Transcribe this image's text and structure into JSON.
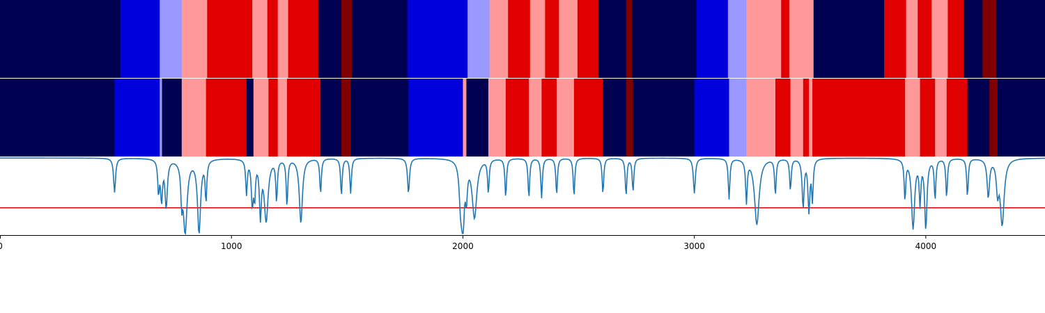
{
  "chart_data": {
    "type": "heatmap",
    "title": "",
    "xlabel": "",
    "xlim": [
      0,
      4515
    ],
    "x_ticks": [
      0,
      1000,
      2000,
      3000,
      4000
    ],
    "x_tick_labels": [
      "0",
      "1000",
      "2000",
      "3000",
      "4000"
    ],
    "grid": false,
    "legend": "none",
    "color_map": {
      "0": "#000050",
      "1": "#0000DC",
      "2": "#9999FF",
      "3": "#FF9999",
      "4": "#E10000",
      "5": "#800000"
    },
    "rows": [
      {
        "segments": [
          [
            0,
            520,
            0
          ],
          [
            520,
            690,
            1
          ],
          [
            690,
            785,
            2
          ],
          [
            785,
            895,
            3
          ],
          [
            895,
            1090,
            4
          ],
          [
            1090,
            1155,
            3
          ],
          [
            1155,
            1200,
            4
          ],
          [
            1200,
            1245,
            3
          ],
          [
            1245,
            1375,
            4
          ],
          [
            1375,
            1475,
            0
          ],
          [
            1475,
            1520,
            5
          ],
          [
            1520,
            1760,
            0
          ],
          [
            1760,
            2020,
            1
          ],
          [
            2020,
            2115,
            2
          ],
          [
            2115,
            2195,
            3
          ],
          [
            2195,
            2290,
            4
          ],
          [
            2290,
            2355,
            3
          ],
          [
            2355,
            2415,
            4
          ],
          [
            2415,
            2495,
            3
          ],
          [
            2495,
            2585,
            4
          ],
          [
            2585,
            2705,
            0
          ],
          [
            2705,
            2730,
            5
          ],
          [
            2730,
            3010,
            0
          ],
          [
            3010,
            3145,
            1
          ],
          [
            3145,
            3225,
            2
          ],
          [
            3225,
            3375,
            3
          ],
          [
            3375,
            3410,
            4
          ],
          [
            3410,
            3515,
            3
          ],
          [
            3515,
            3820,
            0
          ],
          [
            3820,
            3915,
            4
          ],
          [
            3915,
            3965,
            3
          ],
          [
            3965,
            4025,
            4
          ],
          [
            4025,
            4095,
            3
          ],
          [
            4095,
            4165,
            4
          ],
          [
            4165,
            4245,
            0
          ],
          [
            4245,
            4305,
            5
          ],
          [
            4305,
            4515,
            0
          ]
        ]
      },
      {
        "segments": [
          [
            0,
            495,
            0
          ],
          [
            495,
            690,
            1
          ],
          [
            690,
            700,
            2
          ],
          [
            700,
            785,
            0
          ],
          [
            785,
            890,
            3
          ],
          [
            890,
            1065,
            4
          ],
          [
            1065,
            1095,
            0
          ],
          [
            1095,
            1160,
            3
          ],
          [
            1160,
            1200,
            4
          ],
          [
            1200,
            1240,
            3
          ],
          [
            1240,
            1385,
            4
          ],
          [
            1385,
            1475,
            0
          ],
          [
            1475,
            1515,
            5
          ],
          [
            1515,
            1765,
            0
          ],
          [
            1765,
            2000,
            1
          ],
          [
            2000,
            2015,
            3
          ],
          [
            2015,
            2110,
            0
          ],
          [
            2110,
            2185,
            3
          ],
          [
            2185,
            2285,
            4
          ],
          [
            2285,
            2340,
            3
          ],
          [
            2340,
            2405,
            4
          ],
          [
            2405,
            2480,
            3
          ],
          [
            2480,
            2605,
            4
          ],
          [
            2605,
            2705,
            0
          ],
          [
            2705,
            2735,
            5
          ],
          [
            2735,
            3000,
            0
          ],
          [
            3000,
            3150,
            1
          ],
          [
            3150,
            3225,
            2
          ],
          [
            3225,
            3350,
            3
          ],
          [
            3350,
            3415,
            4
          ],
          [
            3415,
            3470,
            3
          ],
          [
            3470,
            3495,
            4
          ],
          [
            3495,
            3510,
            3
          ],
          [
            3510,
            3910,
            4
          ],
          [
            3910,
            3975,
            3
          ],
          [
            3975,
            4040,
            4
          ],
          [
            4040,
            4090,
            3
          ],
          [
            4090,
            4180,
            4
          ],
          [
            4180,
            4275,
            0
          ],
          [
            4275,
            4310,
            5
          ],
          [
            4310,
            4515,
            0
          ]
        ]
      }
    ],
    "line": {
      "color": "#1F77B4",
      "ylim": [
        0,
        1
      ],
      "baseline": 0.99,
      "threshold": {
        "value": 0.35,
        "color": "#E00000"
      },
      "dips": [
        [
          495,
          0.55,
          5
        ],
        [
          685,
          0.58,
          4
        ],
        [
          698,
          0.48,
          5
        ],
        [
          718,
          0.38,
          6
        ],
        [
          785,
          0.56,
          4
        ],
        [
          800,
          0.06,
          10
        ],
        [
          860,
          0.05,
          8
        ],
        [
          890,
          0.48,
          4
        ],
        [
          1065,
          0.55,
          4
        ],
        [
          1090,
          0.43,
          5
        ],
        [
          1100,
          0.55,
          4
        ],
        [
          1125,
          0.3,
          5
        ],
        [
          1150,
          0.2,
          10
        ],
        [
          1195,
          0.46,
          4
        ],
        [
          1240,
          0.39,
          4
        ],
        [
          1300,
          0.16,
          8
        ],
        [
          1385,
          0.54,
          4
        ],
        [
          1475,
          0.51,
          4
        ],
        [
          1515,
          0.54,
          4
        ],
        [
          1765,
          0.54,
          5
        ],
        [
          1990,
          0.47,
          7
        ],
        [
          2000,
          0.1,
          6
        ],
        [
          2015,
          0.58,
          5
        ],
        [
          2050,
          0.24,
          12
        ],
        [
          2110,
          0.56,
          4
        ],
        [
          2185,
          0.49,
          4
        ],
        [
          2285,
          0.48,
          4
        ],
        [
          2340,
          0.48,
          4
        ],
        [
          2405,
          0.52,
          4
        ],
        [
          2480,
          0.5,
          4
        ],
        [
          2605,
          0.53,
          4
        ],
        [
          2705,
          0.51,
          4
        ],
        [
          2735,
          0.56,
          4
        ],
        [
          3000,
          0.54,
          5
        ],
        [
          3150,
          0.47,
          4
        ],
        [
          3225,
          0.45,
          4
        ],
        [
          3270,
          0.14,
          12
        ],
        [
          3350,
          0.53,
          4
        ],
        [
          3415,
          0.58,
          4
        ],
        [
          3470,
          0.37,
          5
        ],
        [
          3495,
          0.33,
          5
        ],
        [
          3510,
          0.48,
          4
        ],
        [
          3910,
          0.48,
          4
        ],
        [
          3945,
          0.1,
          8
        ],
        [
          3975,
          0.45,
          4
        ],
        [
          4000,
          0.1,
          6
        ],
        [
          4040,
          0.47,
          4
        ],
        [
          4090,
          0.49,
          4
        ],
        [
          4180,
          0.5,
          4
        ],
        [
          4270,
          0.5,
          6
        ],
        [
          4310,
          0.62,
          6
        ],
        [
          4330,
          0.15,
          10
        ]
      ]
    }
  }
}
